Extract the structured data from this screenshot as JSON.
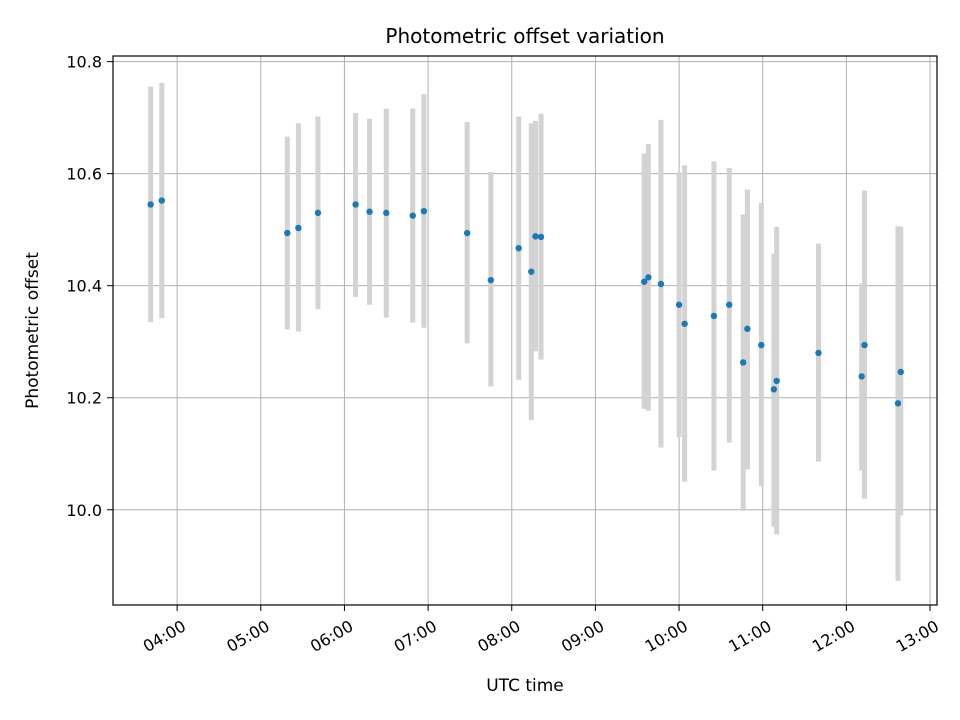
{
  "chart_data": {
    "type": "scatter",
    "title": "Photometric offset variation",
    "xlabel": "UTC time",
    "ylabel": "Photometric offset",
    "xlim": [
      "03:14",
      "13:05"
    ],
    "ylim": [
      9.83,
      10.81
    ],
    "x_ticks": [
      "04:00",
      "05:00",
      "06:00",
      "07:00",
      "08:00",
      "09:00",
      "10:00",
      "11:00",
      "12:00",
      "13:00"
    ],
    "y_ticks": [
      "10.0",
      "10.2",
      "10.4",
      "10.6",
      "10.8"
    ],
    "y_tick_values": [
      10.0,
      10.2,
      10.4,
      10.6,
      10.8
    ],
    "grid": true,
    "colors": {
      "point": "#1f77b4",
      "errorbar": "#d3d3d3",
      "grid": "#b0b0b0"
    },
    "points": [
      {
        "x": "03:41",
        "y": 10.545,
        "low": 10.335,
        "high": 10.755
      },
      {
        "x": "03:49",
        "y": 10.552,
        "low": 10.342,
        "high": 10.762
      },
      {
        "x": "05:19",
        "y": 10.494,
        "low": 10.322,
        "high": 10.666
      },
      {
        "x": "05:27",
        "y": 10.503,
        "low": 10.318,
        "high": 10.69
      },
      {
        "x": "05:41",
        "y": 10.53,
        "low": 10.358,
        "high": 10.702
      },
      {
        "x": "06:08",
        "y": 10.545,
        "low": 10.38,
        "high": 10.708
      },
      {
        "x": "06:18",
        "y": 10.532,
        "low": 10.366,
        "high": 10.698
      },
      {
        "x": "06:30",
        "y": 10.53,
        "low": 10.343,
        "high": 10.716
      },
      {
        "x": "06:49",
        "y": 10.525,
        "low": 10.334,
        "high": 10.716
      },
      {
        "x": "06:57",
        "y": 10.533,
        "low": 10.325,
        "high": 10.742
      },
      {
        "x": "07:28",
        "y": 10.494,
        "low": 10.297,
        "high": 10.692
      },
      {
        "x": "07:45",
        "y": 10.41,
        "low": 10.22,
        "high": 10.603
      },
      {
        "x": "08:05",
        "y": 10.467,
        "low": 10.232,
        "high": 10.702
      },
      {
        "x": "08:14",
        "y": 10.425,
        "low": 10.16,
        "high": 10.69
      },
      {
        "x": "08:17",
        "y": 10.488,
        "low": 10.283,
        "high": 10.694
      },
      {
        "x": "08:21",
        "y": 10.487,
        "low": 10.268,
        "high": 10.707
      },
      {
        "x": "09:35",
        "y": 10.407,
        "low": 10.18,
        "high": 10.636
      },
      {
        "x": "09:38",
        "y": 10.415,
        "low": 10.177,
        "high": 10.653
      },
      {
        "x": "09:47",
        "y": 10.403,
        "low": 10.111,
        "high": 10.696
      },
      {
        "x": "10:00",
        "y": 10.366,
        "low": 10.13,
        "high": 10.602
      },
      {
        "x": "10:04",
        "y": 10.332,
        "low": 10.05,
        "high": 10.615
      },
      {
        "x": "10:25",
        "y": 10.346,
        "low": 10.07,
        "high": 10.622
      },
      {
        "x": "10:36",
        "y": 10.366,
        "low": 10.12,
        "high": 10.61
      },
      {
        "x": "10:46",
        "y": 10.263,
        "low": 9.998,
        "high": 10.527
      },
      {
        "x": "10:49",
        "y": 10.323,
        "low": 10.072,
        "high": 10.572
      },
      {
        "x": "10:59",
        "y": 10.294,
        "low": 10.042,
        "high": 10.548
      },
      {
        "x": "11:08",
        "y": 10.215,
        "low": 9.97,
        "high": 10.457
      },
      {
        "x": "11:10",
        "y": 10.23,
        "low": 9.956,
        "high": 10.505
      },
      {
        "x": "11:40",
        "y": 10.28,
        "low": 10.086,
        "high": 10.475
      },
      {
        "x": "12:11",
        "y": 10.238,
        "low": 10.07,
        "high": 10.404
      },
      {
        "x": "12:13",
        "y": 10.294,
        "low": 10.02,
        "high": 10.57
      },
      {
        "x": "12:37",
        "y": 10.19,
        "low": 9.873,
        "high": 10.506
      },
      {
        "x": "12:39",
        "y": 10.246,
        "low": 9.99,
        "high": 10.505
      }
    ]
  }
}
